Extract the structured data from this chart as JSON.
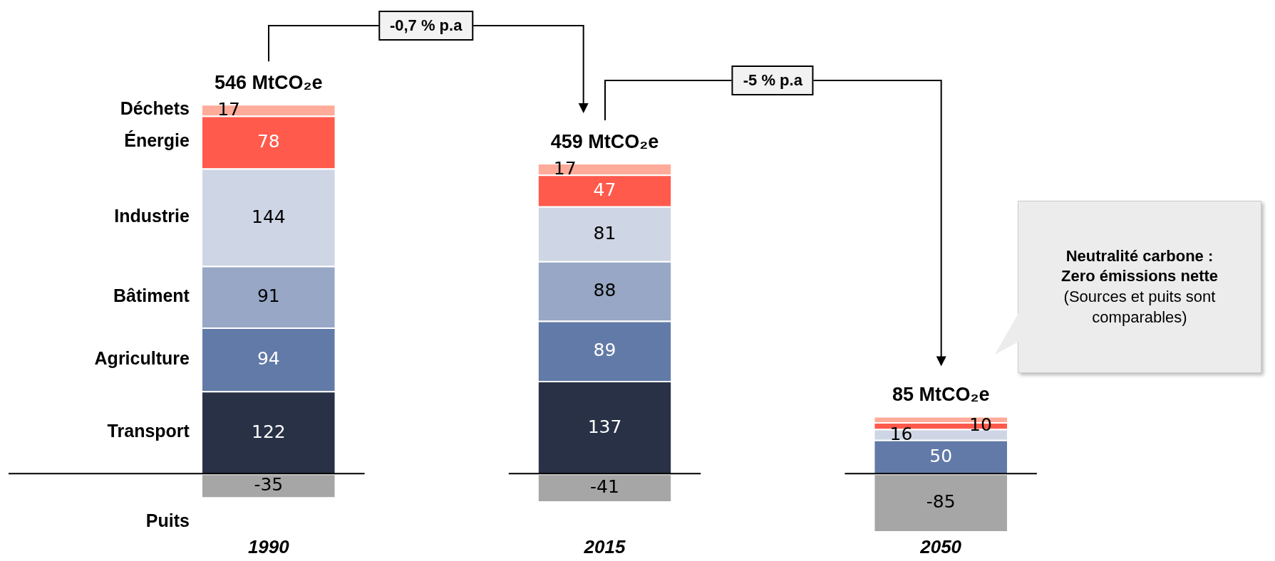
{
  "chart_data": {
    "type": "bar",
    "stacked": true,
    "categories": [
      "1990",
      "2015",
      "2050"
    ],
    "series": [
      {
        "name": "Transport",
        "color": "#283146",
        "values": [
          122,
          137,
          null
        ],
        "value_labels": [
          "122",
          "137",
          null
        ]
      },
      {
        "name": "Agriculture",
        "color": "#627aa7",
        "values": [
          94,
          89,
          50
        ],
        "value_labels": [
          "94",
          "89",
          "50"
        ]
      },
      {
        "name": "Bâtiment",
        "color": "#97a7c5",
        "values": [
          91,
          88,
          null
        ],
        "value_labels": [
          "91",
          "88",
          null
        ]
      },
      {
        "name": "Industrie",
        "color": "#ced5e4",
        "values": [
          144,
          81,
          16
        ],
        "value_labels": [
          "144",
          "81",
          "16"
        ]
      },
      {
        "name": "Énergie",
        "color": "#ff5a4c",
        "values": [
          78,
          47,
          10
        ],
        "value_labels": [
          "78",
          "47",
          "10"
        ]
      },
      {
        "name": "Déchets",
        "color": "#ffab99",
        "values": [
          17,
          17,
          9
        ],
        "value_labels": [
          "17",
          "17",
          null
        ]
      },
      {
        "name": "Puits",
        "color": "#a6a6a6",
        "values": [
          -35,
          -41,
          -85
        ],
        "value_labels": [
          "-35",
          "-41",
          "-85"
        ]
      }
    ],
    "annotations": [
      {
        "text": "546 MtCO₂e",
        "x": "1990",
        "y": 546
      },
      {
        "text": "459 MtCO₂e",
        "x": "2015",
        "y": 459
      },
      {
        "text": "85 MtCO₂e",
        "x": "2050",
        "y": 85
      },
      "-0,7 % p.a",
      "-5 % p.a",
      "Neutralité carbone :\nZero émissions nette",
      "(Sources et puits sont\ncomparables)"
    ],
    "ref_lines": [
      {
        "axis": "y",
        "value": 0,
        "color": "#000000"
      }
    ],
    "ylim": [
      -90,
      600
    ],
    "tick_labels": "x",
    "legend": false,
    "grid": false
  }
}
